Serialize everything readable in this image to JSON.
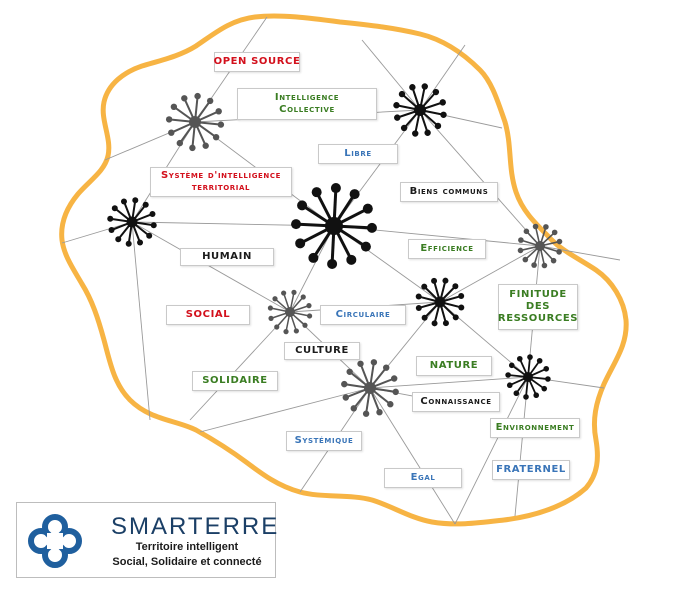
{
  "labels": {
    "open_source": "OPEN SOURCE",
    "intelligence_collective": "Intelligence Collective",
    "libre": "Libre",
    "systeme": "Système d'intelligence territorial",
    "biens_communs": "Biens communs",
    "humain": "HUMAIN",
    "efficience": "Efficience",
    "social": "SOCIAL",
    "circulaire": "Circulaire",
    "finitude": "FINITUDE DES RESSOURCES",
    "culture": "CULTURE",
    "nature": "NATURE",
    "solidaire": "SOLIDAIRE",
    "connaissance": "Connaissance",
    "environnement": "Environnement",
    "systemique": "Systémique",
    "fraternel": "FRATERNEL",
    "egal": "Egal"
  },
  "brand": {
    "name": "SMARTERRE",
    "tagline_1": "Territoire intelligent",
    "tagline_2": "Social, Solidaire et connecté"
  },
  "colors": {
    "island_outline": "#f7b444",
    "link_line": "#9a9a9a",
    "hub_black": "#111111",
    "hub_gray": "#555555",
    "label_red": "#d3101c",
    "label_green": "#3a7d22",
    "label_blue": "#3a75b8",
    "logo_blue": "#1f5f9e"
  }
}
